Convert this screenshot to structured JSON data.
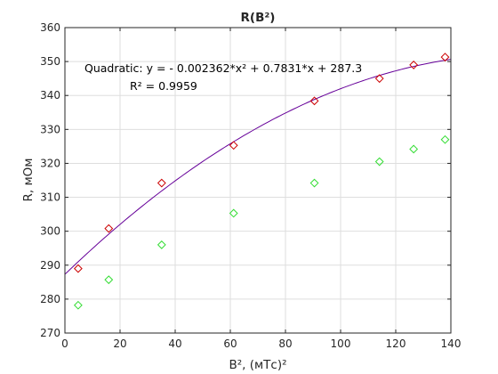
{
  "chart_data": {
    "type": "scatter",
    "title": "R(B²)",
    "xlabel": "B², (мТс)²",
    "ylabel": "R, мОм",
    "xlim": [
      0,
      140
    ],
    "ylim": [
      270,
      360
    ],
    "xticks": [
      0,
      20,
      40,
      60,
      80,
      100,
      120,
      140
    ],
    "yticks": [
      270,
      280,
      290,
      300,
      310,
      320,
      330,
      340,
      350,
      360
    ],
    "grid": true,
    "series": [
      {
        "marker": "diamond",
        "color": "#cc0000",
        "x": [
          4.8,
          15.9,
          35.1,
          61.2,
          90.5,
          114.1,
          126.5,
          137.9
        ],
        "y": [
          289.0,
          300.8,
          314.2,
          325.3,
          338.4,
          345.0,
          349.0,
          351.3
        ]
      },
      {
        "marker": "diamond",
        "color": "#33dd33",
        "x": [
          4.8,
          15.9,
          35.1,
          61.2,
          90.5,
          114.1,
          126.5,
          137.9
        ],
        "y": [
          278.2,
          285.7,
          296.0,
          305.3,
          314.2,
          320.5,
          324.2,
          327.0
        ]
      }
    ],
    "fit": {
      "type": "quadratic",
      "color": "#660099",
      "a": -0.002362,
      "b": 0.7831,
      "c": 287.3,
      "x_range": [
        0,
        140
      ]
    },
    "annotations": {
      "equation": "Quadratic:  y = - 0.002362*x² + 0.7831*x + 287.3",
      "r2": "R² = 0.9959"
    }
  }
}
